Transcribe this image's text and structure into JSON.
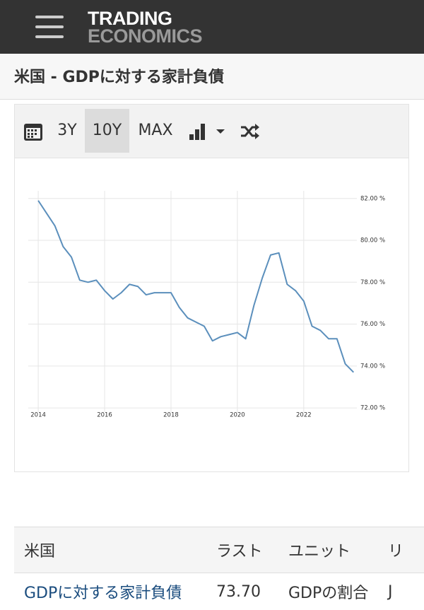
{
  "header": {
    "logo_top": "TRADING",
    "logo_bottom": "ECONOMICS",
    "title": "米国 - GDPに対する家計負債"
  },
  "toolbar": {
    "buttons": [
      "3Y",
      "10Y",
      "MAX"
    ]
  },
  "chart_data": {
    "type": "line",
    "x": [
      2014,
      2014.25,
      2014.5,
      2014.75,
      2015,
      2015.25,
      2015.5,
      2015.75,
      2016,
      2016.25,
      2016.5,
      2016.75,
      2017,
      2017.25,
      2017.5,
      2017.75,
      2018,
      2018.25,
      2018.5,
      2018.75,
      2019,
      2019.25,
      2019.5,
      2019.75,
      2020,
      2020.25,
      2020.5,
      2020.75,
      2021,
      2021.25,
      2021.5,
      2021.75,
      2022,
      2022.25,
      2022.5,
      2022.75,
      2023,
      2023.25,
      2023.5
    ],
    "values": [
      81.9,
      81.3,
      80.7,
      79.7,
      79.2,
      78.1,
      78.0,
      78.1,
      77.6,
      77.2,
      77.5,
      77.9,
      77.8,
      77.4,
      77.5,
      77.5,
      77.5,
      76.8,
      76.3,
      76.1,
      75.9,
      75.2,
      75.4,
      75.5,
      75.6,
      75.3,
      76.9,
      78.2,
      79.3,
      79.4,
      77.9,
      77.6,
      77.1,
      75.9,
      75.7,
      75.3,
      75.3,
      74.1,
      73.7
    ],
    "color": "#5b8fbc",
    "xlim": [
      2013.7,
      2023.6
    ],
    "ylim": [
      71.8,
      82.6
    ],
    "xticks": [
      2014,
      2016,
      2018,
      2020,
      2022
    ],
    "yticks": [
      {
        "value": 72,
        "label": "72.00 %"
      },
      {
        "value": 74,
        "label": "74.00 %"
      },
      {
        "value": 76,
        "label": "76.00 %"
      },
      {
        "value": 78,
        "label": "78.00 %"
      },
      {
        "value": 80,
        "label": "80.00 %"
      },
      {
        "value": 82,
        "label": "82.00 %"
      }
    ],
    "grid": true
  },
  "table": {
    "columns": [
      "米国",
      "ラスト",
      "ユニット",
      "リ"
    ],
    "rows": [
      [
        "GDPに対する家計負債",
        "73.70",
        "GDPの割合",
        "J"
      ]
    ]
  }
}
